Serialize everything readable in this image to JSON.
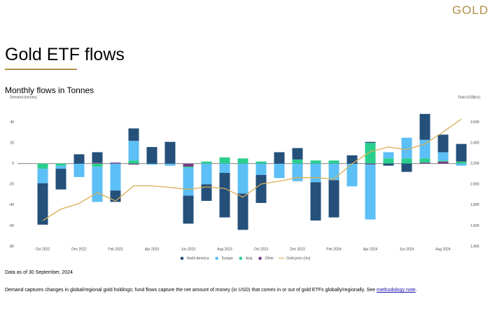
{
  "header": {
    "brand": "GOLD",
    "title": "Gold ETF flows"
  },
  "chart_data": {
    "type": "bar",
    "stacked": true,
    "title": "Monthly flows in Tonnes",
    "ylabel": "Demand (tonnes)",
    "y2label": "Gold (US$/oz)",
    "categories": [
      "Oct 2022",
      null,
      "Dec 2022",
      null,
      "Feb 2023",
      null,
      "Apr 2023",
      null,
      "Jun 2023",
      null,
      "Aug 2023",
      null,
      "Oct 2023",
      null,
      "Dec 2023",
      null,
      "Feb 2024",
      null,
      "Apr 2024",
      null,
      "Jun 2024",
      null,
      "Aug 2024",
      null
    ],
    "series": [
      {
        "name": "North America",
        "color": "#24507a",
        "values": [
          -40,
          -20,
          9,
          10,
          -11,
          12,
          16,
          21,
          -27,
          -16,
          -43,
          -35,
          -27,
          11,
          11,
          -37,
          -36,
          8,
          1,
          -2,
          -8,
          25,
          17,
          17
        ]
      },
      {
        "name": "Europe",
        "color": "#5cbff5",
        "values": [
          -14,
          -3,
          -13,
          -34,
          -26,
          19,
          -1,
          -2,
          -27,
          -20,
          -9,
          -29,
          -11,
          -14,
          -17,
          -18,
          -16,
          -22,
          -53,
          6,
          20,
          18,
          8,
          -2
        ]
      },
      {
        "name": "Asia",
        "color": "#2bcf8c",
        "values": [
          -5,
          -2,
          0,
          -3,
          0,
          3,
          0,
          0,
          -1,
          2,
          6,
          5,
          2,
          0,
          4,
          3,
          3,
          0,
          20,
          5,
          5,
          4,
          1,
          2
        ]
      },
      {
        "name": "Other",
        "color": "#7a3d8a",
        "values": [
          0,
          0,
          0,
          1,
          1,
          -1,
          0,
          0,
          -3,
          0,
          0,
          0,
          0,
          0,
          0,
          0,
          0,
          0,
          -1,
          0,
          0,
          1,
          2,
          0
        ]
      },
      {
        "name": "Gold price (rhs)",
        "color": "#d9ad56",
        "type": "line",
        "axis": "y2",
        "values": [
          1650,
          1760,
          1815,
          1920,
          1840,
          1985,
          1985,
          1970,
          1950,
          1975,
          1960,
          1875,
          2003,
          2030,
          2065,
          2065,
          2050,
          2200,
          2315,
          2360,
          2335,
          2390,
          2505,
          2630
        ]
      }
    ],
    "ylim": [
      -80,
      60
    ],
    "yticks": [
      -80,
      -60,
      -40,
      -20,
      0,
      20,
      40
    ],
    "y2lim": [
      1400,
      2800
    ],
    "y2ticks": [
      {
        "value": 1400,
        "label": "1,400"
      },
      {
        "value": 1600,
        "label": "1,600"
      },
      {
        "value": 1800,
        "label": "1,800"
      },
      {
        "value": 2000,
        "label": "2,000"
      },
      {
        "value": 2200,
        "label": "2,200"
      },
      {
        "value": 2400,
        "label": "2,400"
      },
      {
        "value": 2600,
        "label": "2,600"
      }
    ],
    "grid": false,
    "legend": "bottom"
  },
  "footnotes": {
    "as_of": "Data as of 30 September, 2024",
    "text": "Demand captures changes in global/regional gold holdings; fund flows capture the net amount of money (in USD) that comes in or out of gold ETFs globally/regionally. See ",
    "link": "methodology note",
    "suffix": "."
  }
}
